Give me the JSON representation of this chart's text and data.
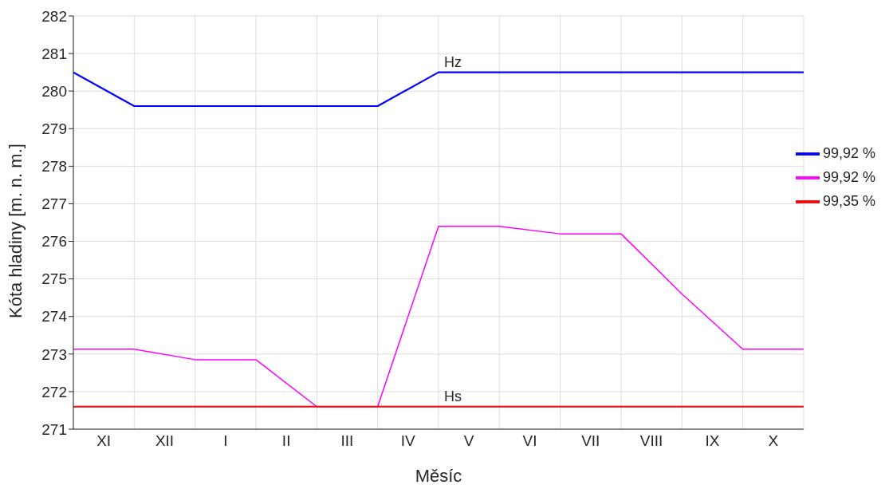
{
  "chart_data": {
    "type": "line",
    "xlabel": "Měsíc",
    "ylabel": "Kóta hladiny [m. n. m.]",
    "categories": [
      null,
      "XI",
      null,
      "XII",
      null,
      "I",
      null,
      "II",
      null,
      "III",
      null,
      "IV",
      null,
      "V",
      null,
      "VI",
      null,
      "VII",
      null,
      "VIII",
      null,
      "IX",
      null,
      "X",
      null
    ],
    "ylim": [
      271,
      282
    ],
    "yticks": [
      271,
      272,
      273,
      274,
      275,
      276,
      277,
      278,
      279,
      280,
      281,
      282
    ],
    "grid": true,
    "legend": "right",
    "marker": "none",
    "line_style": "solid",
    "series": [
      {
        "name": "99,92 %",
        "color": "#0000ff",
        "values": [
          280.5,
          null,
          279.6,
          null,
          279.6,
          null,
          279.6,
          null,
          279.6,
          null,
          279.6,
          null,
          280.5,
          null,
          280.5,
          null,
          280.5,
          null,
          280.5,
          null,
          280.5,
          null,
          280.5,
          null,
          280.5
        ]
      },
      {
        "name": "99,92 %",
        "color": "#ff00ff",
        "values": [
          273.13,
          null,
          273.13,
          null,
          272.85,
          null,
          272.85,
          null,
          271.6,
          null,
          271.6,
          null,
          276.4,
          null,
          276.4,
          null,
          276.2,
          null,
          276.2,
          null,
          274.6,
          null,
          273.13,
          null,
          273.13
        ]
      },
      {
        "name": "99,35 %",
        "color": "#ff0000",
        "values": [
          271.6,
          null,
          271.6,
          null,
          271.6,
          null,
          271.6,
          null,
          271.6,
          null,
          271.6,
          null,
          271.6,
          null,
          271.6,
          null,
          271.6,
          null,
          271.6,
          null,
          271.6,
          null,
          271.6,
          null,
          271.6
        ]
      }
    ],
    "annotations": [
      {
        "text": "Hz",
        "y": 280.5
      },
      {
        "text": "Hs",
        "y": 271.6
      }
    ]
  }
}
